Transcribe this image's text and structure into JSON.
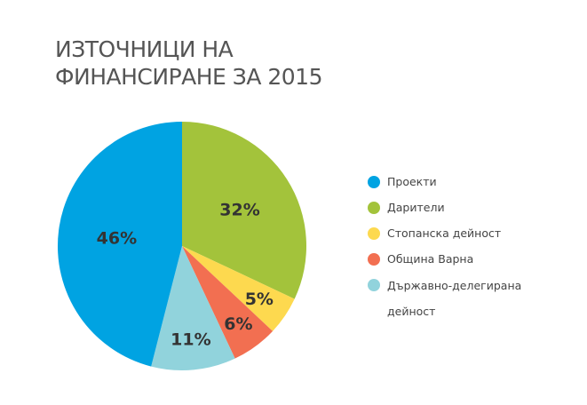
{
  "chart_data": {
    "type": "pie",
    "title": [
      "ИЗТОЧНИЦИ НА",
      "ФИНАНСИРАНЕ ЗА 2015"
    ],
    "slices": [
      {
        "name": "Дарители",
        "value": 32,
        "label": "32%",
        "color": "#a3c33b"
      },
      {
        "name": "Стопанска дейност",
        "value": 5,
        "label": "5%",
        "color": "#fdd94f"
      },
      {
        "name": "Община Варна",
        "value": 6,
        "label": "6%",
        "color": "#f26f51"
      },
      {
        "name": "Държавно-делегирана дейност",
        "value": 11,
        "label": "11%",
        "color": "#91d3dc"
      },
      {
        "name": "Проекти",
        "value": 46,
        "label": "46%",
        "color": "#00a3e2"
      }
    ],
    "legend_order": [
      "Проекти",
      "Дарители",
      "Стопанска дейност",
      "Община Варна",
      "Държавно-делегирана дейност"
    ],
    "legend_position": "right"
  }
}
